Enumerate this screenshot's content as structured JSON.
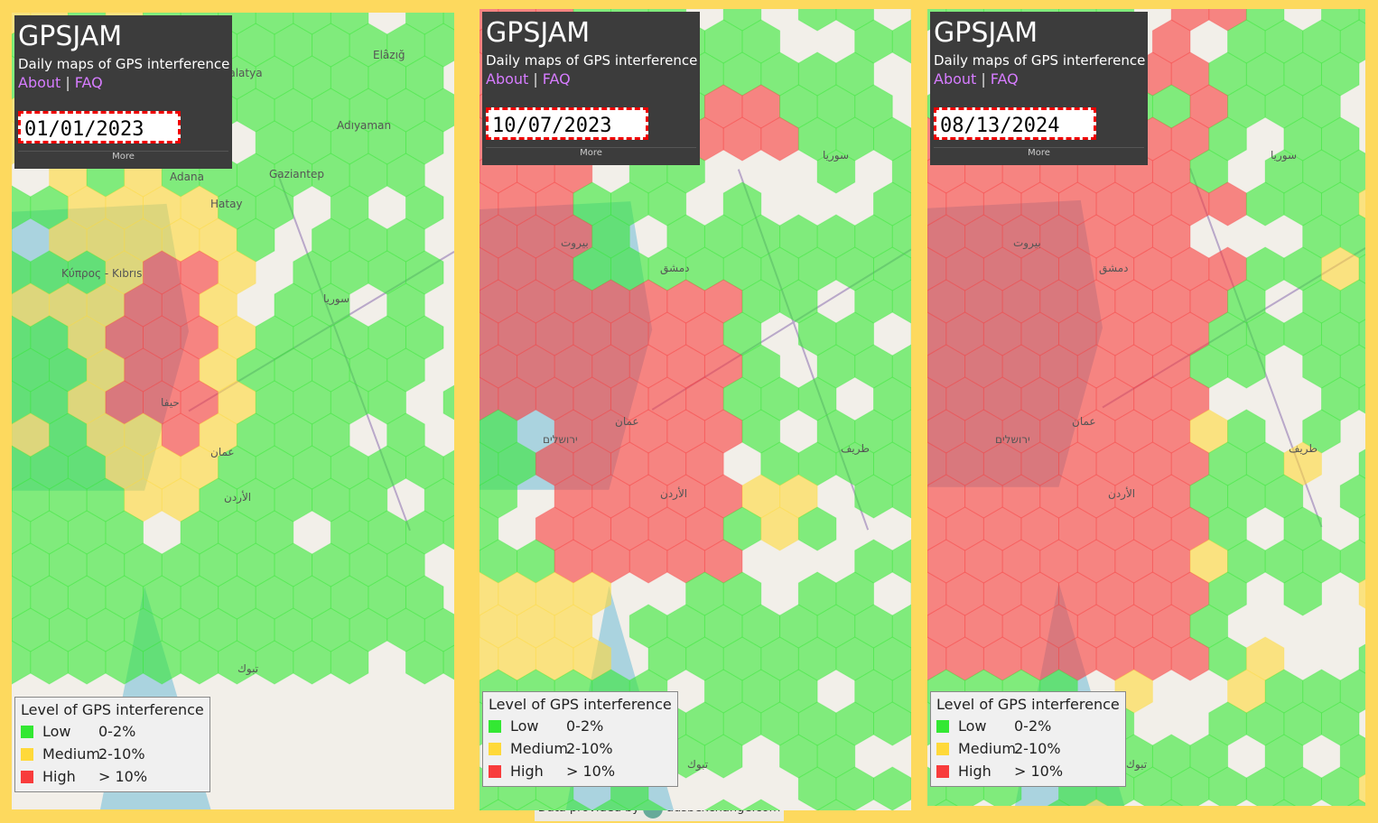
{
  "panels": [
    {
      "title": "GPSJAM",
      "subtitle": "Daily maps of GPS interference",
      "links": [
        "About",
        "FAQ"
      ],
      "separator": "|",
      "date": "01/01/2023",
      "more": "More",
      "places": [
        "Elâzığ",
        "Malatya",
        "Adıyaman",
        "Gaziantep",
        "Adana",
        "Hatay",
        "Κύπρος - Kıbrıs",
        "حيفا",
        "عمان",
        "تبوك",
        "سوريا",
        "الأردن"
      ]
    },
    {
      "title": "GPSJAM",
      "subtitle": "Daily maps of GPS interference",
      "links": [
        "About",
        "FAQ"
      ],
      "separator": "|",
      "date": "10/07/2023",
      "more": "More",
      "places": [
        "سوريا",
        "دمشق",
        "بيروت",
        "عمان",
        "الأردن",
        "تبوك",
        "طريف",
        "ירושלים"
      ]
    },
    {
      "title": "GPSJAM",
      "subtitle": "Daily maps of GPS interference",
      "links": [
        "About",
        "FAQ"
      ],
      "separator": "|",
      "date": "08/13/2024",
      "more": "More",
      "places": [
        "سوريا",
        "دمشق",
        "بيروت",
        "عمان",
        "الأردن",
        "تبوك",
        "طريف",
        "ירושלים"
      ]
    }
  ],
  "legend": {
    "title": "Level of GPS interference",
    "items": [
      {
        "label": "Low",
        "range": "0-2%",
        "color": "#33e833"
      },
      {
        "label": "Medium",
        "range": "2-10%",
        "color": "#ffd93a"
      },
      {
        "label": "High",
        "range": "> 10%",
        "color": "#f83c3c"
      }
    ]
  },
  "footer": {
    "text": "Data provided by",
    "link": "adsbexchange.com"
  }
}
